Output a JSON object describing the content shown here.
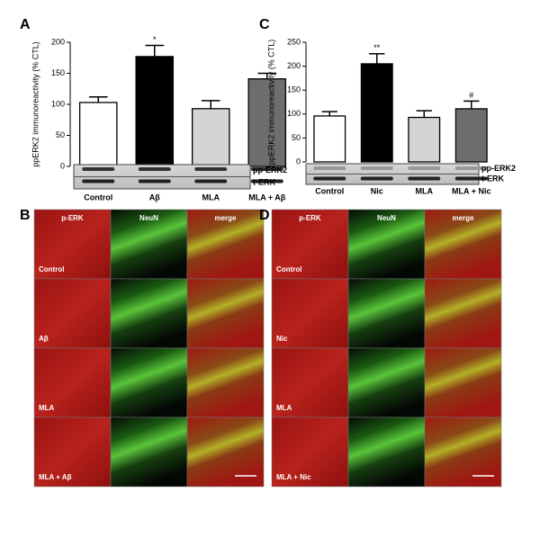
{
  "chart_data": [
    {
      "type": "bar",
      "panel_label": "A",
      "y_label": "ppERK2 immunoreactivity (% CTL)",
      "categories": [
        "Control",
        "Aβ",
        "MLA",
        "MLA + Aβ"
      ],
      "values": [
        103,
        177,
        93,
        141
      ],
      "errors": [
        9,
        18,
        13,
        9
      ],
      "colors": [
        "#ffffff",
        "#000000",
        "#d4d4d4",
        "#6e6e6e"
      ],
      "annotations": [
        null,
        "*",
        null,
        null
      ],
      "blot_labels": [
        "pp-ERK2",
        "t-ERK"
      ],
      "ylim": [
        0,
        200
      ],
      "yticks": [
        0,
        50,
        100,
        150,
        200
      ]
    },
    {
      "type": "bar",
      "panel_label": "C",
      "y_label": "ppERK2 immunoreactivity (% CTL)",
      "categories": [
        "Control",
        "Nic",
        "MLA",
        "MLA + Nic"
      ],
      "values": [
        96,
        205,
        93,
        111
      ],
      "errors": [
        9,
        21,
        14,
        16
      ],
      "colors": [
        "#ffffff",
        "#000000",
        "#d4d4d4",
        "#6e6e6e"
      ],
      "annotations": [
        null,
        "**",
        null,
        "#"
      ],
      "blot_labels": [
        "pp-ERK2",
        "t-ERK"
      ],
      "ylim": [
        0,
        250
      ],
      "yticks": [
        0,
        50,
        100,
        150,
        200,
        250
      ]
    }
  ],
  "micrographs": [
    {
      "panel_label": "B",
      "columns": [
        "p-ERK",
        "NeuN",
        "merge"
      ],
      "rows": [
        "Control",
        "Aβ",
        "MLA",
        "MLA + Aβ"
      ]
    },
    {
      "panel_label": "D",
      "columns": [
        "p-ERK",
        "NeuN",
        "merge"
      ],
      "rows": [
        "Control",
        "Nic",
        "MLA",
        "MLA + Nic"
      ]
    }
  ]
}
